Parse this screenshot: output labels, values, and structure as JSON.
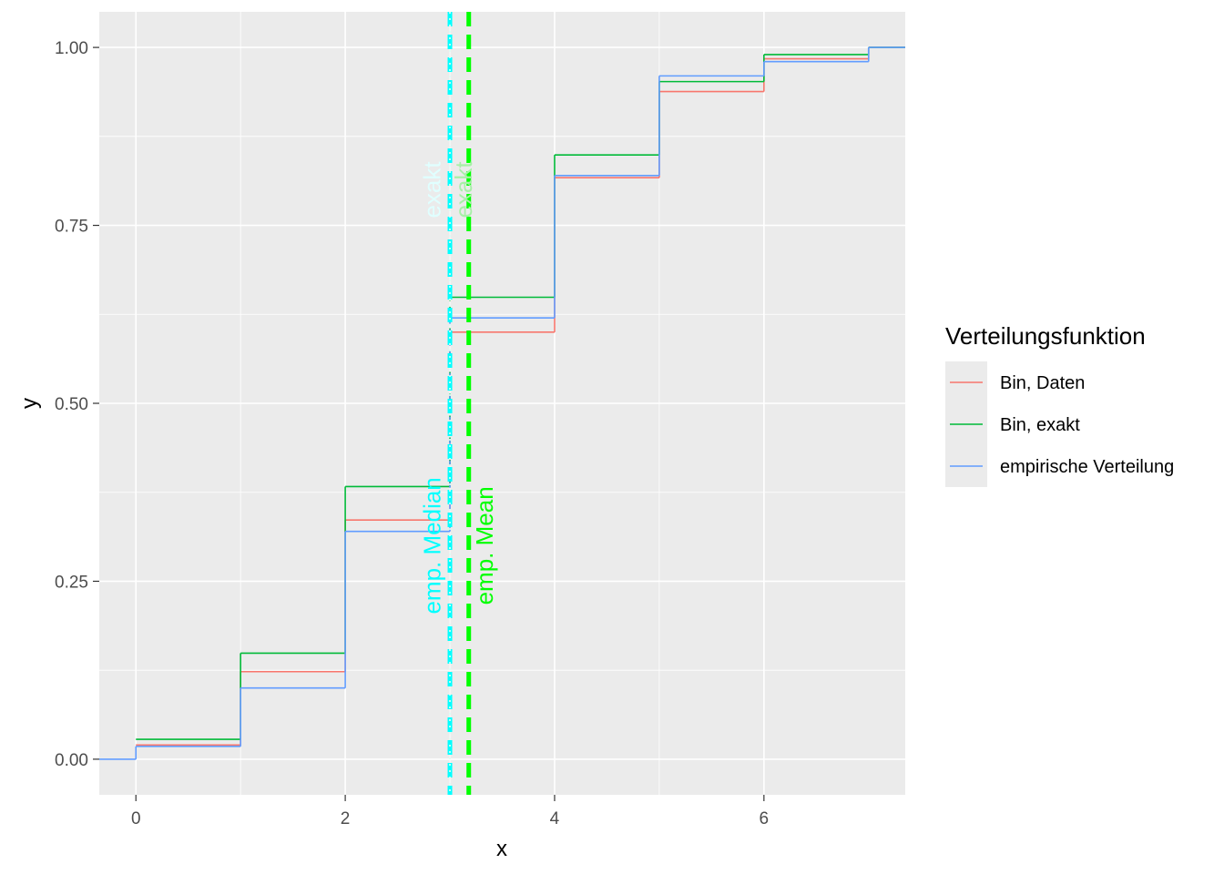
{
  "chart_data": {
    "type": "line",
    "step": true,
    "xlabel": "x",
    "ylabel": "y",
    "xlim": [
      -0.35,
      7.35
    ],
    "ylim": [
      -0.05,
      1.05
    ],
    "x_ticks": [
      0,
      2,
      4,
      6
    ],
    "x_tick_labels": [
      "0",
      "2",
      "4",
      "6"
    ],
    "y_ticks": [
      0,
      0.25,
      0.5,
      0.75,
      1.0
    ],
    "y_tick_labels": [
      "0.00",
      "0.25",
      "0.50",
      "0.75",
      "1.00"
    ],
    "grid": true,
    "legend": {
      "title": "Verteilungsfunktion",
      "placement": "right"
    },
    "series": [
      {
        "name": "Bin, Daten",
        "color": "#F8766D",
        "x": [
          0,
          1,
          2,
          3,
          4,
          5,
          6,
          7
        ],
        "values": [
          0.02,
          0.123,
          0.336,
          0.6,
          0.817,
          0.938,
          0.984,
          1.0
        ]
      },
      {
        "name": "Bin, exakt",
        "color": "#00BA38",
        "x": [
          0,
          1,
          2,
          3,
          4,
          5,
          6,
          7
        ],
        "values": [
          0.028,
          0.149,
          0.383,
          0.649,
          0.849,
          0.952,
          0.99,
          1.0
        ]
      },
      {
        "name": "empirische Verteilung",
        "color": "#619CFF",
        "x": [
          -0.35,
          0,
          1,
          2,
          3,
          4,
          5,
          6,
          7
        ],
        "values": [
          0.0,
          0.018,
          0.1,
          0.32,
          0.62,
          0.82,
          0.96,
          0.98,
          1.0
        ]
      }
    ],
    "vlines": [
      {
        "label": "emp. Median",
        "x": 3.0,
        "color": "#00FFFF",
        "style": "dashed"
      },
      {
        "label": "exakt",
        "x": 3.0,
        "color": "#B4FFB4",
        "style": "dotted"
      },
      {
        "label": "emp. Mean",
        "x": 3.18,
        "color": "#00FF00",
        "style": "dashed"
      },
      {
        "label": "exakt",
        "x": 3.0,
        "color": "#E0FFFF",
        "style": "dotted"
      }
    ],
    "annotations": [
      {
        "text": "emp. Median",
        "x": 2.85,
        "y": 0.3,
        "color": "#00FFFF",
        "angle": 90
      },
      {
        "text": "emp. Mean",
        "x": 3.35,
        "y": 0.3,
        "color": "#00FF00",
        "angle": 90
      },
      {
        "text": "exakt",
        "x": 2.85,
        "y": 0.8,
        "color": "#E0FFFF",
        "angle": 90
      },
      {
        "text": "exakt",
        "x": 3.15,
        "y": 0.8,
        "color": "#A6F0A6",
        "angle": 90
      }
    ]
  }
}
